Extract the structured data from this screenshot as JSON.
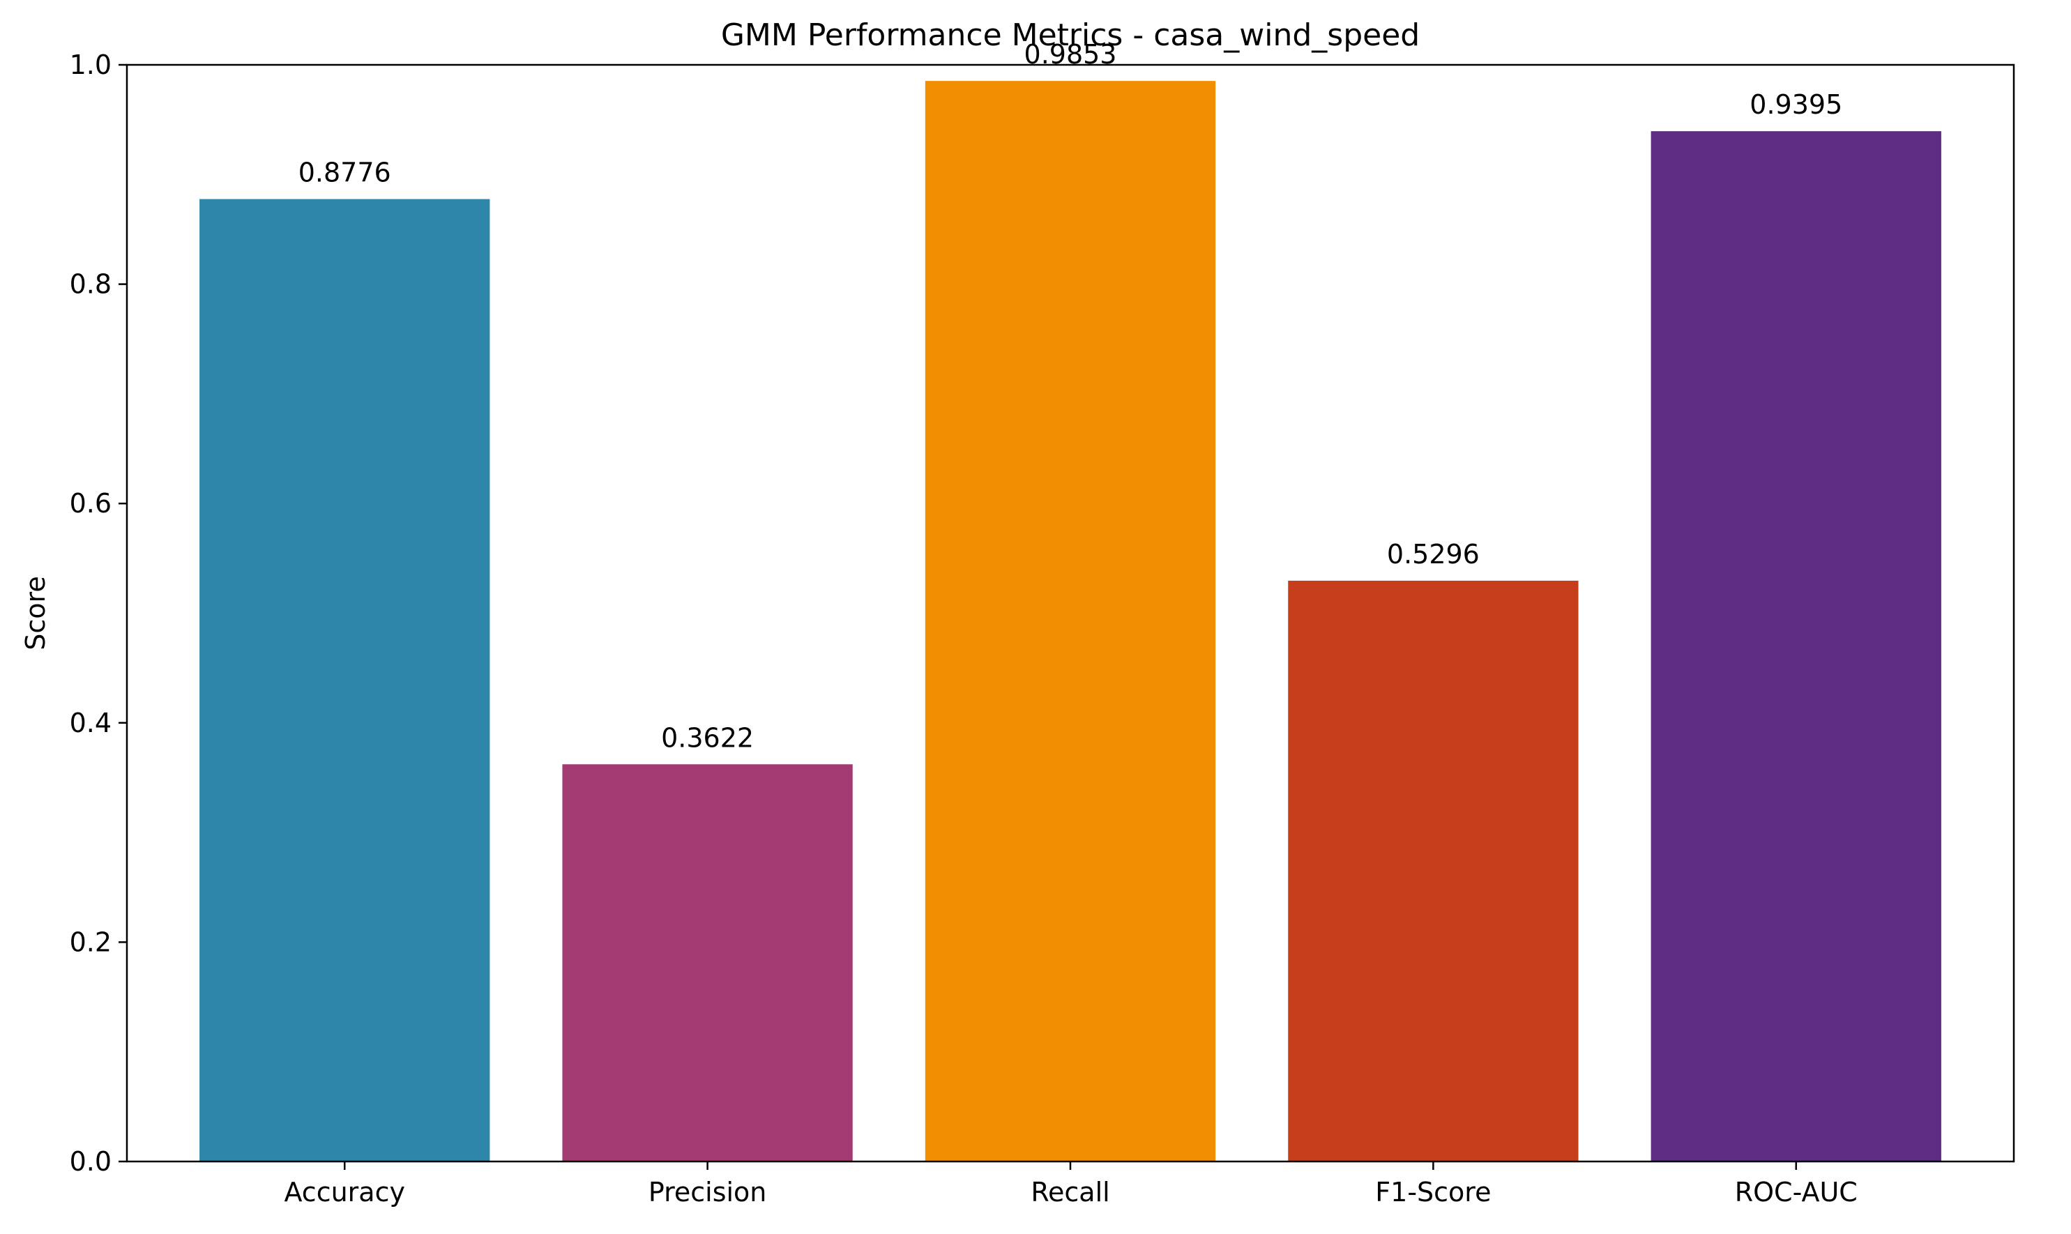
{
  "chart_data": {
    "type": "bar",
    "title": "GMM Performance Metrics - casa_wind_speed",
    "xlabel": "",
    "ylabel": "Score",
    "categories": [
      "Accuracy",
      "Precision",
      "Recall",
      "F1-Score",
      "ROC-AUC"
    ],
    "values": [
      0.8776,
      0.3622,
      0.9853,
      0.5296,
      0.9395
    ],
    "value_labels": [
      "0.8776",
      "0.3622",
      "0.9853",
      "0.5296",
      "0.9395"
    ],
    "colors": [
      "#2E86AB",
      "#A23B72",
      "#F18F01",
      "#C73E1D",
      "#5C2D82"
    ],
    "ylim": [
      0,
      1.0
    ],
    "yticks": [
      0.0,
      0.2,
      0.4,
      0.6,
      0.8,
      1.0
    ],
    "ytick_labels": [
      "0.0",
      "0.2",
      "0.4",
      "0.6",
      "0.8",
      "1.0"
    ],
    "grid": false,
    "legend": "none"
  }
}
